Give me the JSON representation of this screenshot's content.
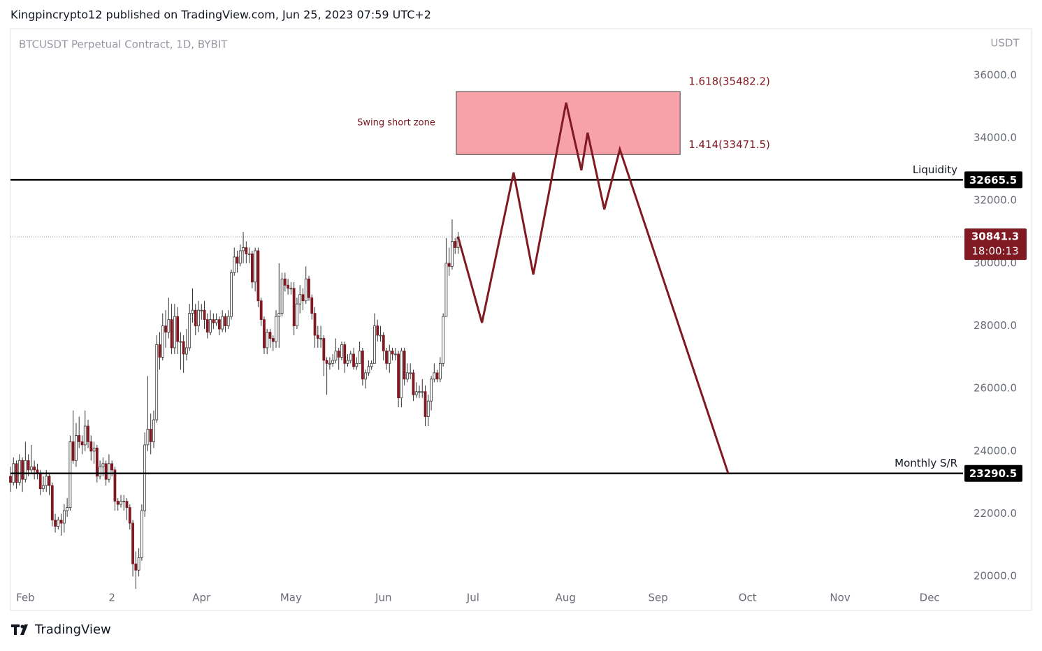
{
  "header": {
    "text": "Kingpincrypto12 published on TradingView.com, Jun 25, 2023 07:59 UTC+2"
  },
  "footer": {
    "brand": "TradingView"
  },
  "chart_data": {
    "type": "candlestick",
    "title": "BTCUSDT Perpetual Contract, 1D, BYBIT",
    "y_unit": "USDT",
    "up_color": "#ffffff",
    "down_color": "#801922",
    "outline_color": "#333333",
    "candles": [
      [
        23200,
        23500,
        22700,
        23000
      ],
      [
        23000,
        23800,
        22900,
        23600
      ],
      [
        23600,
        23700,
        22800,
        23000
      ],
      [
        23000,
        23900,
        22900,
        23700
      ],
      [
        23700,
        23800,
        22700,
        23100
      ],
      [
        23100,
        24300,
        23000,
        23700
      ],
      [
        23700,
        23900,
        23200,
        23400
      ],
      [
        23400,
        24200,
        23300,
        23500
      ],
      [
        23500,
        23700,
        23100,
        23400
      ],
      [
        23400,
        23600,
        23100,
        23300
      ],
      [
        23300,
        23400,
        22600,
        22800
      ],
      [
        22800,
        23200,
        22700,
        22900
      ],
      [
        22900,
        23400,
        22700,
        23200
      ],
      [
        23200,
        23300,
        22600,
        22900
      ],
      [
        22900,
        23000,
        21600,
        21800
      ],
      [
        21800,
        22000,
        21400,
        21600
      ],
      [
        21600,
        21900,
        21500,
        21800
      ],
      [
        21800,
        22000,
        21300,
        21700
      ],
      [
        21700,
        22300,
        21400,
        22100
      ],
      [
        22100,
        22500,
        21900,
        22200
      ],
      [
        22200,
        24500,
        22100,
        24300
      ],
      [
        24300,
        25300,
        23600,
        23700
      ],
      [
        23700,
        24900,
        23500,
        24500
      ],
      [
        24500,
        25100,
        24100,
        24300
      ],
      [
        24300,
        24500,
        23900,
        24200
      ],
      [
        24200,
        25300,
        24000,
        24800
      ],
      [
        24800,
        25000,
        24100,
        24300
      ],
      [
        24300,
        24500,
        23700,
        24000
      ],
      [
        24000,
        24300,
        23600,
        24100
      ],
      [
        24100,
        24200,
        23000,
        23200
      ],
      [
        23200,
        23700,
        23100,
        23500
      ],
      [
        23500,
        23800,
        23200,
        23600
      ],
      [
        23600,
        23700,
        22900,
        23100
      ],
      [
        23100,
        23900,
        23000,
        23600
      ],
      [
        23600,
        23700,
        23200,
        23400
      ],
      [
        23400,
        23500,
        22100,
        22400
      ],
      [
        22400,
        22500,
        22100,
        22300
      ],
      [
        22300,
        22600,
        22200,
        22400
      ],
      [
        22400,
        22600,
        22100,
        22400
      ],
      [
        22400,
        22500,
        21800,
        22200
      ],
      [
        22200,
        22300,
        21500,
        21700
      ],
      [
        21700,
        21800,
        20000,
        20400
      ],
      [
        20400,
        20800,
        19600,
        20200
      ],
      [
        20200,
        20900,
        20000,
        20600
      ],
      [
        20600,
        22300,
        20500,
        22100
      ],
      [
        22100,
        24600,
        21900,
        24200
      ],
      [
        24200,
        26400,
        24000,
        24700
      ],
      [
        24700,
        25200,
        23900,
        24300
      ],
      [
        24300,
        25300,
        24100,
        25000
      ],
      [
        25000,
        27700,
        24900,
        27400
      ],
      [
        27400,
        27800,
        26600,
        27000
      ],
      [
        27000,
        28400,
        26900,
        28000
      ],
      [
        28000,
        28500,
        27300,
        27800
      ],
      [
        27800,
        28900,
        27600,
        28200
      ],
      [
        28200,
        28700,
        27100,
        27300
      ],
      [
        27300,
        28700,
        27100,
        28300
      ],
      [
        28300,
        28600,
        27100,
        27500
      ],
      [
        27500,
        27800,
        26600,
        27500
      ],
      [
        27500,
        27700,
        26500,
        27100
      ],
      [
        27100,
        27900,
        26900,
        27300
      ],
      [
        27300,
        28700,
        27200,
        28400
      ],
      [
        28400,
        29200,
        28100,
        28500
      ],
      [
        28500,
        28700,
        27700,
        28000
      ],
      [
        28000,
        28800,
        27800,
        28500
      ],
      [
        28500,
        28700,
        28200,
        28500
      ],
      [
        28500,
        28800,
        27900,
        28200
      ],
      [
        28200,
        28400,
        27600,
        27800
      ],
      [
        27800,
        28500,
        27700,
        28200
      ],
      [
        28200,
        28400,
        27900,
        28100
      ],
      [
        28100,
        28400,
        28000,
        28200
      ],
      [
        28200,
        28300,
        27700,
        27900
      ],
      [
        27900,
        28500,
        27800,
        28300
      ],
      [
        28300,
        28400,
        27800,
        28000
      ],
      [
        28000,
        28500,
        27900,
        28300
      ],
      [
        28300,
        29800,
        28200,
        29700
      ],
      [
        29700,
        30500,
        29600,
        30200
      ],
      [
        30200,
        30400,
        29700,
        30000
      ],
      [
        30000,
        30600,
        29900,
        30400
      ],
      [
        30400,
        31000,
        30000,
        30500
      ],
      [
        30500,
        30700,
        30000,
        30300
      ],
      [
        30300,
        30500,
        30000,
        30300
      ],
      [
        30300,
        30400,
        29200,
        29400
      ],
      [
        29400,
        30500,
        29100,
        30400
      ],
      [
        30400,
        30500,
        28600,
        28800
      ],
      [
        28800,
        28900,
        28000,
        28200
      ],
      [
        28200,
        28300,
        27100,
        27300
      ],
      [
        27300,
        27900,
        27100,
        27800
      ],
      [
        27800,
        27900,
        27300,
        27600
      ],
      [
        27600,
        27700,
        27200,
        27500
      ],
      [
        27500,
        28500,
        27300,
        28300
      ],
      [
        28300,
        30000,
        27300,
        28400
      ],
      [
        28400,
        29700,
        28300,
        29500
      ],
      [
        29500,
        29700,
        29100,
        29300
      ],
      [
        29300,
        29500,
        29000,
        29200
      ],
      [
        29200,
        29400,
        29000,
        29200
      ],
      [
        29200,
        29400,
        27700,
        28000
      ],
      [
        28000,
        28900,
        27900,
        28700
      ],
      [
        28700,
        29300,
        28400,
        29000
      ],
      [
        29000,
        29200,
        28500,
        28800
      ],
      [
        28800,
        29900,
        28700,
        29500
      ],
      [
        29500,
        29600,
        28800,
        28900
      ],
      [
        28900,
        29000,
        28200,
        28400
      ],
      [
        28400,
        28600,
        27300,
        27700
      ],
      [
        27700,
        28000,
        27300,
        27600
      ],
      [
        27600,
        28000,
        27300,
        27600
      ],
      [
        27600,
        27700,
        26400,
        26900
      ],
      [
        26900,
        27000,
        25800,
        26800
      ],
      [
        26800,
        27000,
        26600,
        26800
      ],
      [
        26800,
        27100,
        26700,
        26900
      ],
      [
        26900,
        27600,
        26800,
        27200
      ],
      [
        27200,
        27300,
        26600,
        27000
      ],
      [
        27000,
        27500,
        26900,
        27400
      ],
      [
        27400,
        27500,
        26500,
        26800
      ],
      [
        26800,
        27100,
        26700,
        26900
      ],
      [
        26900,
        27200,
        26800,
        27100
      ],
      [
        27100,
        27300,
        26600,
        26700
      ],
      [
        26700,
        27000,
        26600,
        26800
      ],
      [
        26800,
        27500,
        26800,
        27200
      ],
      [
        27200,
        27300,
        26100,
        26300
      ],
      [
        26300,
        26600,
        26000,
        26500
      ],
      [
        26500,
        26900,
        26400,
        26700
      ],
      [
        26700,
        26900,
        26600,
        26800
      ],
      [
        26800,
        28400,
        26800,
        28000
      ],
      [
        28000,
        28200,
        27500,
        27700
      ],
      [
        27700,
        28000,
        27500,
        27700
      ],
      [
        27700,
        27800,
        26900,
        27200
      ],
      [
        27200,
        27300,
        26600,
        26800
      ],
      [
        26800,
        27400,
        26500,
        27200
      ],
      [
        27200,
        27300,
        26900,
        27100
      ],
      [
        27100,
        27300,
        26900,
        27100
      ],
      [
        27100,
        27200,
        25400,
        25700
      ],
      [
        25700,
        27300,
        25400,
        27200
      ],
      [
        27200,
        27300,
        26100,
        26300
      ],
      [
        26300,
        26800,
        26200,
        26500
      ],
      [
        26500,
        26800,
        26300,
        26500
      ],
      [
        26500,
        26600,
        25600,
        25800
      ],
      [
        25800,
        26200,
        25700,
        25900
      ],
      [
        25900,
        26100,
        25700,
        25900
      ],
      [
        25900,
        26300,
        25700,
        25900
      ],
      [
        25900,
        26100,
        24800,
        25100
      ],
      [
        25100,
        25800,
        24800,
        25600
      ],
      [
        25600,
        26400,
        25300,
        26300
      ],
      [
        26300,
        26800,
        26200,
        26500
      ],
      [
        26500,
        26600,
        26200,
        26300
      ],
      [
        26300,
        27000,
        26200,
        26800
      ],
      [
        26800,
        28400,
        26700,
        28300
      ],
      [
        28300,
        30800,
        28300,
        30000
      ],
      [
        30000,
        30500,
        29600,
        29900
      ],
      [
        29900,
        31400,
        29800,
        30700
      ],
      [
        30700,
        30800,
        30300,
        30500
      ],
      [
        30500,
        31000,
        30300,
        30841.3
      ]
    ],
    "xlim": [
      0,
      318.5
    ],
    "xticks": [
      {
        "value": 5,
        "label": "Feb"
      },
      {
        "value": 34,
        "label": "2"
      },
      {
        "value": 64,
        "label": "Apr"
      },
      {
        "value": 94,
        "label": "May"
      },
      {
        "value": 125,
        "label": "Jun"
      },
      {
        "value": 155,
        "label": "Jul"
      },
      {
        "value": 186,
        "label": "Aug"
      },
      {
        "value": 217,
        "label": "Sep"
      },
      {
        "value": 247,
        "label": "Oct"
      },
      {
        "value": 278,
        "label": "Nov"
      },
      {
        "value": 308,
        "label": "Dec"
      }
    ],
    "ylim": [
      19670,
      37470
    ],
    "yticks": [
      {
        "value": 20000,
        "label": "20000.0"
      },
      {
        "value": 22000,
        "label": "22000.0"
      },
      {
        "value": 24000,
        "label": "24000.0"
      },
      {
        "value": 26000,
        "label": "26000.0"
      },
      {
        "value": 28000,
        "label": "28000.0"
      },
      {
        "value": 30000,
        "label": "30000.0"
      },
      {
        "value": 32000,
        "label": "32000.0"
      },
      {
        "value": 34000,
        "label": "34000.0"
      },
      {
        "value": 36000,
        "label": "36000.0"
      }
    ],
    "levels": [
      {
        "name": "Liquidity",
        "value": 32665.5
      },
      {
        "name": "Monthly S/R",
        "value": 23290.5
      }
    ],
    "last_price": {
      "value": 30841.3,
      "countdown": "18:00:13"
    },
    "zone": {
      "label": "Swing short zone",
      "x": [
        149.4,
        224.4
      ],
      "fib": [
        {
          "value": 35482.2,
          "label": "1.618(35482.2)"
        },
        {
          "value": 33471.5,
          "label": "1.414(33471.5)"
        }
      ]
    },
    "projection": {
      "color": "#801922",
      "x": [
        150,
        158,
        168.6,
        175.2,
        186.2,
        191.3,
        193.4,
        199,
        204.2,
        240.5
      ],
      "values": [
        30841.3,
        28100,
        32900,
        29640,
        35130,
        32970,
        34170,
        31720,
        33640,
        23290.5
      ]
    }
  }
}
